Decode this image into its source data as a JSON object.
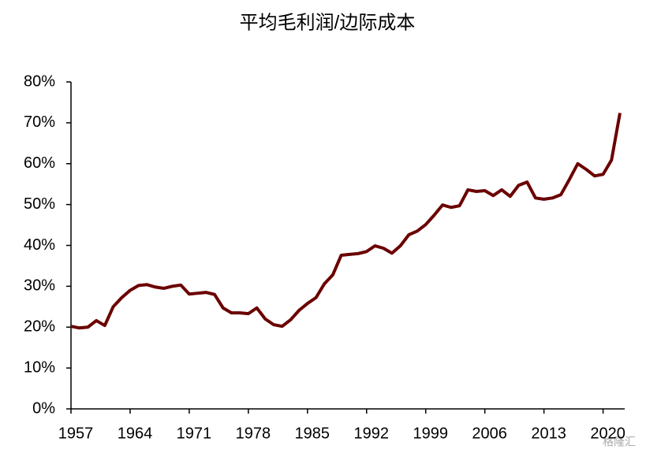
{
  "chart_data": {
    "type": "line",
    "title": "平均毛利润/边际成本",
    "x": [
      1957,
      1958,
      1959,
      1960,
      1961,
      1962,
      1963,
      1964,
      1965,
      1966,
      1967,
      1968,
      1969,
      1970,
      1971,
      1972,
      1973,
      1974,
      1975,
      1976,
      1977,
      1978,
      1979,
      1980,
      1981,
      1982,
      1983,
      1984,
      1985,
      1986,
      1987,
      1988,
      1989,
      1990,
      1991,
      1992,
      1993,
      1994,
      1995,
      1996,
      1997,
      1998,
      1999,
      2000,
      2001,
      2002,
      2003,
      2004,
      2005,
      2006,
      2007,
      2008,
      2009,
      2010,
      2011,
      2012,
      2013,
      2014,
      2015,
      2016,
      2017,
      2018,
      2019,
      2020,
      2021,
      2022
    ],
    "series": [
      {
        "name": "平均毛利润/边际成本",
        "color": "#6b0000",
        "values": [
          20.2,
          19.8,
          20,
          21.6,
          20.4,
          25,
          27.2,
          29,
          30.2,
          30.4,
          29.8,
          29.5,
          30,
          30.3,
          28.1,
          28.3,
          28.5,
          28,
          24.7,
          23.5,
          23.5,
          23.3,
          24.7,
          22,
          20.6,
          20.2,
          21.8,
          24.1,
          25.8,
          27.2,
          30.6,
          32.8,
          37.6,
          37.8,
          38,
          38.5,
          39.9,
          39.3,
          38.1,
          39.9,
          42.6,
          43.5,
          45.1,
          47.4,
          49.9,
          49.3,
          49.7,
          53.6,
          53.2,
          53.4,
          52.2,
          53.6,
          52,
          54.7,
          55.5,
          51.6,
          51.3,
          51.6,
          52.4,
          56.1,
          60,
          58.6,
          57,
          57.4,
          60.9,
          72.4
        ]
      }
    ],
    "xlim": [
      1957,
      2022
    ],
    "xticks": [
      1957,
      1964,
      1971,
      1978,
      1985,
      1992,
      1999,
      2006,
      2013,
      2020
    ],
    "ylim": [
      0,
      80
    ],
    "yticks": [
      {
        "value": 0,
        "label": "0%"
      },
      {
        "value": 10,
        "label": "10%"
      },
      {
        "value": 20,
        "label": "20%"
      },
      {
        "value": 30,
        "label": "30%"
      },
      {
        "value": 40,
        "label": "40%"
      },
      {
        "value": 50,
        "label": "50%"
      },
      {
        "value": 60,
        "label": "60%"
      },
      {
        "value": 70,
        "label": "70%"
      },
      {
        "value": 80,
        "label": "80%"
      }
    ],
    "grid": false,
    "watermark": "格隆汇"
  }
}
